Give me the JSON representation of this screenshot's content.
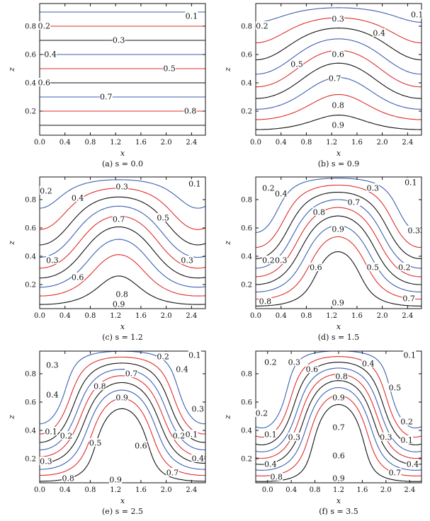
{
  "figure": {
    "panels": [
      {
        "caption": "(a) s = 0.0"
      },
      {
        "caption": "(b) s = 0.9"
      },
      {
        "caption": "(c) s = 1.2"
      },
      {
        "caption": "(d) s = 1.5"
      },
      {
        "caption": "(e) s = 2.5"
      },
      {
        "caption": "(f) s = 3.5"
      }
    ]
  },
  "chart_data": [
    {
      "type": "contour",
      "caption": "(a) s = 0.0",
      "xlabel": "x",
      "ylabel": "z",
      "xlim": [
        0,
        2.62
      ],
      "ylim": [
        0.03,
        0.96
      ],
      "xticks": [
        "0.0",
        "0.4",
        "0.8",
        "1.2",
        "1.6",
        "2.0",
        "2.4"
      ],
      "yticks": [
        "0.2",
        "0.4",
        "0.6",
        "0.8"
      ],
      "s": 0.0,
      "contour_labels": [
        {
          "text": "0.1",
          "x": 2.4,
          "z": 0.87
        },
        {
          "text": "0.2",
          "x": 0.07,
          "z": 0.8
        },
        {
          "text": "0.3",
          "x": 1.25,
          "z": 0.7
        },
        {
          "text": "0.4",
          "x": 0.17,
          "z": 0.6
        },
        {
          "text": "0.5",
          "x": 2.05,
          "z": 0.5
        },
        {
          "text": "0.6",
          "x": 0.07,
          "z": 0.4
        },
        {
          "text": "0.7",
          "x": 1.05,
          "z": 0.3
        },
        {
          "text": "0.8",
          "x": 2.38,
          "z": 0.2
        }
      ]
    },
    {
      "type": "contour",
      "caption": "(b) s = 0.9",
      "xlabel": "x",
      "ylabel": "z",
      "xlim": [
        0,
        2.62
      ],
      "ylim": [
        0.03,
        0.96
      ],
      "xticks": [
        "0.0",
        "0.4",
        "0.8",
        "1.2",
        "1.6",
        "2.0",
        "2.4"
      ],
      "yticks": [
        "0.2",
        "0.4",
        "0.6",
        "0.8"
      ],
      "s": 0.9,
      "contour_labels": [
        {
          "text": "0.1",
          "x": 2.55,
          "z": 0.88
        },
        {
          "text": "0.2",
          "x": 0.1,
          "z": 0.8
        },
        {
          "text": "0.3",
          "x": 1.3,
          "z": 0.85
        },
        {
          "text": "0.4",
          "x": 1.95,
          "z": 0.75
        },
        {
          "text": "0.5",
          "x": 0.65,
          "z": 0.53
        },
        {
          "text": "0.6",
          "x": 1.3,
          "z": 0.6
        },
        {
          "text": "0.7",
          "x": 1.25,
          "z": 0.43
        },
        {
          "text": "0.8",
          "x": 1.3,
          "z": 0.24
        },
        {
          "text": "0.9",
          "x": 1.3,
          "z": 0.1
        }
      ]
    },
    {
      "type": "contour",
      "caption": "(c) s = 1.2",
      "xlabel": "x",
      "ylabel": "z",
      "xlim": [
        0,
        2.62
      ],
      "ylim": [
        0.03,
        0.96
      ],
      "xticks": [
        "0.0",
        "0.4",
        "0.8",
        "1.2",
        "1.6",
        "2.0",
        "2.4"
      ],
      "yticks": [
        "0.2",
        "0.4",
        "0.6",
        "0.8"
      ],
      "s": 1.2,
      "contour_labels": [
        {
          "text": "0.1",
          "x": 2.45,
          "z": 0.91
        },
        {
          "text": "0.2",
          "x": 0.1,
          "z": 0.86
        },
        {
          "text": "0.3",
          "x": 1.3,
          "z": 0.89
        },
        {
          "text": "0.4",
          "x": 0.6,
          "z": 0.81
        },
        {
          "text": "0.5",
          "x": 1.95,
          "z": 0.67
        },
        {
          "text": "0.6",
          "x": 0.6,
          "z": 0.25
        },
        {
          "text": "0.7",
          "x": 1.25,
          "z": 0.66
        },
        {
          "text": "0.8",
          "x": 1.3,
          "z": 0.13
        },
        {
          "text": "0.9",
          "x": 1.25,
          "z": 0.06
        },
        {
          "text": "0.3",
          "x": 0.2,
          "z": 0.37
        },
        {
          "text": "0.3",
          "x": 2.33,
          "z": 0.37
        }
      ]
    },
    {
      "type": "contour",
      "caption": "(d) s = 1.5",
      "xlabel": "x",
      "ylabel": "z",
      "xlim": [
        0,
        2.62
      ],
      "ylim": [
        0.03,
        0.96
      ],
      "xticks": [
        "0.0",
        "0.4",
        "0.8",
        "1.2",
        "1.6",
        "2.0",
        "2.4"
      ],
      "yticks": [
        "0.2",
        "0.4",
        "0.6",
        "0.8"
      ],
      "s": 1.5,
      "contour_labels": [
        {
          "text": "0.1",
          "x": 2.45,
          "z": 0.92
        },
        {
          "text": "0.2",
          "x": 0.2,
          "z": 0.88
        },
        {
          "text": "0.3",
          "x": 1.85,
          "z": 0.88
        },
        {
          "text": "0.4",
          "x": 0.4,
          "z": 0.84
        },
        {
          "text": "0.7",
          "x": 1.55,
          "z": 0.78
        },
        {
          "text": "0.8",
          "x": 1.0,
          "z": 0.71
        },
        {
          "text": "0.9",
          "x": 1.3,
          "z": 0.59
        },
        {
          "text": "0.3",
          "x": 2.5,
          "z": 0.58
        },
        {
          "text": "0.2",
          "x": 0.2,
          "z": 0.37
        },
        {
          "text": "0.3",
          "x": 0.4,
          "z": 0.37
        },
        {
          "text": "0.6",
          "x": 0.95,
          "z": 0.32
        },
        {
          "text": "0.5",
          "x": 1.85,
          "z": 0.32
        },
        {
          "text": "0.2",
          "x": 2.35,
          "z": 0.32
        },
        {
          "text": "0.8",
          "x": 0.15,
          "z": 0.08
        },
        {
          "text": "0.9",
          "x": 1.3,
          "z": 0.07
        },
        {
          "text": "0.7",
          "x": 2.42,
          "z": 0.1
        }
      ]
    },
    {
      "type": "contour",
      "caption": "(e) s = 2.5",
      "xlabel": "x",
      "ylabel": "z",
      "xlim": [
        0,
        2.62
      ],
      "ylim": [
        0.03,
        0.96
      ],
      "xticks": [
        "0.0",
        "0.4",
        "0.8",
        "1.2",
        "1.6",
        "2.0",
        "2.4"
      ],
      "yticks": [
        "0.2",
        "0.4",
        "0.6",
        "0.8"
      ],
      "s": 2.5,
      "contour_labels": [
        {
          "text": "0.1",
          "x": 2.45,
          "z": 0.93
        },
        {
          "text": "0.2",
          "x": 1.95,
          "z": 0.92
        },
        {
          "text": "0.3",
          "x": 0.2,
          "z": 0.86
        },
        {
          "text": "0.4",
          "x": 2.25,
          "z": 0.83
        },
        {
          "text": "0.7",
          "x": 1.45,
          "z": 0.8
        },
        {
          "text": "0.8",
          "x": 0.95,
          "z": 0.71
        },
        {
          "text": "0.9",
          "x": 1.3,
          "z": 0.63
        },
        {
          "text": "0.4",
          "x": 0.2,
          "z": 0.65
        },
        {
          "text": "0.3",
          "x": 2.5,
          "z": 0.55
        },
        {
          "text": "0.1",
          "x": 0.18,
          "z": 0.39
        },
        {
          "text": "0.2",
          "x": 0.42,
          "z": 0.36
        },
        {
          "text": "0.5",
          "x": 0.88,
          "z": 0.31
        },
        {
          "text": "0.6",
          "x": 1.6,
          "z": 0.29
        },
        {
          "text": "0.2",
          "x": 2.2,
          "z": 0.36
        },
        {
          "text": "0.1",
          "x": 2.4,
          "z": 0.37
        },
        {
          "text": "0.3",
          "x": 0.1,
          "z": 0.18
        },
        {
          "text": "0.4",
          "x": 2.5,
          "z": 0.2
        },
        {
          "text": "0.7",
          "x": 2.1,
          "z": 0.1
        },
        {
          "text": "0.8",
          "x": 0.45,
          "z": 0.06
        },
        {
          "text": "0.9",
          "x": 1.2,
          "z": 0.05
        }
      ]
    },
    {
      "type": "contour",
      "caption": "(f) s = 3.5",
      "xlabel": "x",
      "ylabel": "z",
      "xlim": [
        -0.2,
        2.6
      ],
      "ylim": [
        0.03,
        0.96
      ],
      "xticks": [
        "0.0",
        "0.4",
        "0.8",
        "1.2",
        "1.6",
        "2.0",
        "2.4"
      ],
      "yticks": [
        "0.2",
        "0.4",
        "0.6",
        "0.8"
      ],
      "s": 3.5,
      "contour_labels": [
        {
          "text": "0.1",
          "x": 2.4,
          "z": 0.93
        },
        {
          "text": "0.2",
          "x": 0.05,
          "z": 0.88
        },
        {
          "text": "0.3",
          "x": 0.45,
          "z": 0.88
        },
        {
          "text": "0.4",
          "x": 1.7,
          "z": 0.87
        },
        {
          "text": "0.6",
          "x": 0.75,
          "z": 0.83
        },
        {
          "text": "0.8",
          "x": 1.25,
          "z": 0.78
        },
        {
          "text": "0.5",
          "x": 2.15,
          "z": 0.7
        },
        {
          "text": "0.9",
          "x": 1.2,
          "z": 0.63
        },
        {
          "text": "0.2",
          "x": -0.1,
          "z": 0.52
        },
        {
          "text": "0.2",
          "x": 2.35,
          "z": 0.46
        },
        {
          "text": "0.7",
          "x": 1.2,
          "z": 0.42
        },
        {
          "text": "0.1",
          "x": 0.05,
          "z": 0.37
        },
        {
          "text": "0.3",
          "x": 0.45,
          "z": 0.35
        },
        {
          "text": "0.3",
          "x": 2.0,
          "z": 0.35
        },
        {
          "text": "0.1",
          "x": 2.35,
          "z": 0.33
        },
        {
          "text": "0.6",
          "x": 1.2,
          "z": 0.22
        },
        {
          "text": "0.4",
          "x": 0.05,
          "z": 0.16
        },
        {
          "text": "0.4",
          "x": 2.45,
          "z": 0.16
        },
        {
          "text": "0.8",
          "x": 0.15,
          "z": 0.07
        },
        {
          "text": "0.9",
          "x": 1.2,
          "z": 0.06
        },
        {
          "text": "0.7",
          "x": 2.15,
          "z": 0.1
        }
      ]
    }
  ]
}
